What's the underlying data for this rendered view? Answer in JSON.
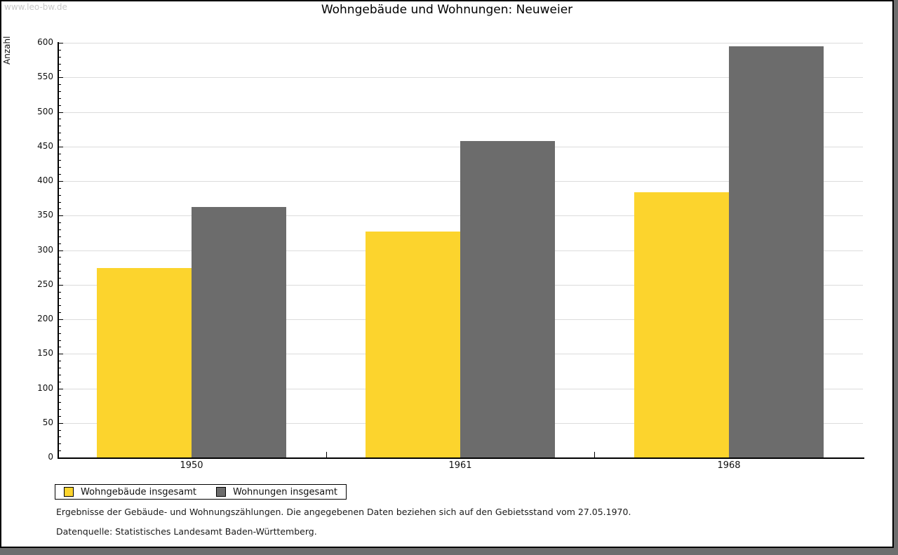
{
  "watermark": "www.leo-bw.de",
  "chart_data": {
    "type": "bar",
    "title": "Wohngebäude und Wohnungen: Neuweier",
    "ylabel": "Anzahl",
    "xlabel": "",
    "categories": [
      "1950",
      "1961",
      "1968"
    ],
    "series": [
      {
        "name": "Wohngebäude insgesamt",
        "color": "#FCD42D",
        "values": [
          274,
          327,
          384
        ]
      },
      {
        "name": "Wohnungen insgesamt",
        "color": "#6C6C6C",
        "values": [
          362,
          458,
          595
        ]
      }
    ],
    "ylim": [
      0,
      600
    ],
    "y_major_step": 50,
    "y_minor_step": 10,
    "grid": true,
    "legend_position": "bottom-left"
  },
  "footer": {
    "note": "Ergebnisse der Gebäude- und Wohnungszählungen. Die angegebenen Daten beziehen sich auf den Gebietsstand vom 27.05.1970.",
    "source": "Datenquelle: Statistisches Landesamt Baden-Württemberg."
  }
}
